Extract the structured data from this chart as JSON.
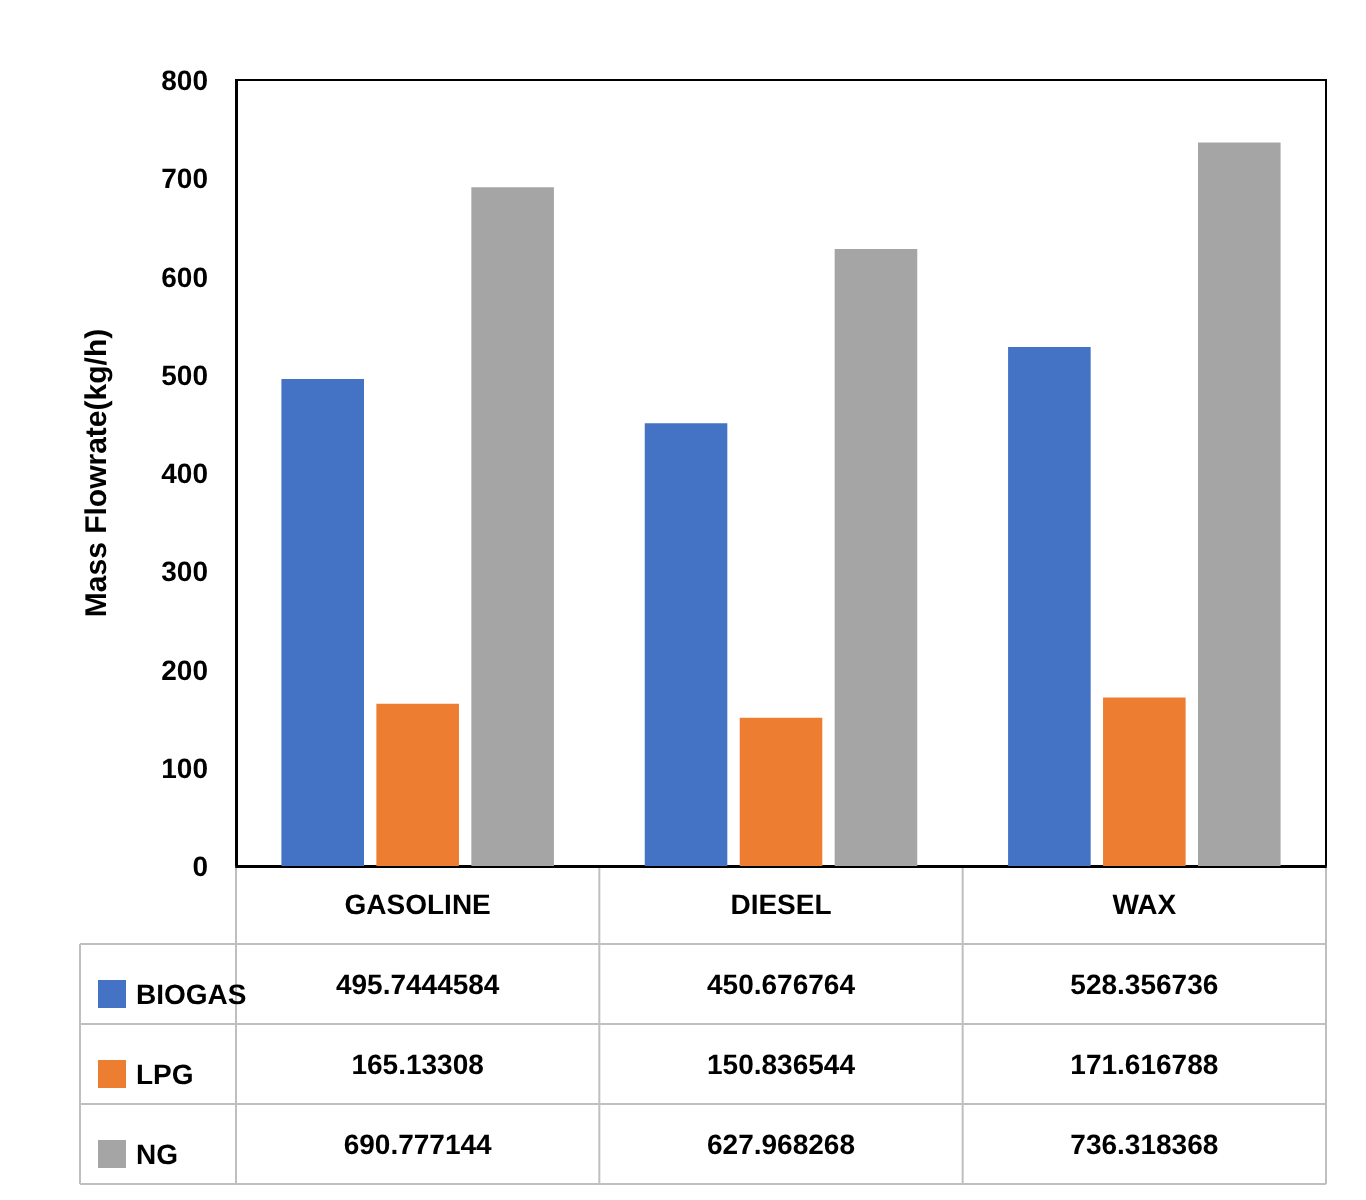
{
  "chart_data": {
    "type": "bar",
    "ylabel": "Mass Flowrate(kg/h)",
    "categories": [
      "GASOLINE",
      "DIESEL",
      "WAX"
    ],
    "series": [
      {
        "name": "BIOGAS",
        "color": "#4472c4",
        "values": [
          495.7444584,
          450.676764,
          528.356736
        ]
      },
      {
        "name": "LPG",
        "color": "#ed7d31",
        "values": [
          165.13308,
          150.836544,
          171.616788
        ]
      },
      {
        "name": "NG",
        "color": "#a5a5a5",
        "values": [
          690.777144,
          627.968268,
          736.318368
        ]
      }
    ],
    "ylim": [
      0,
      800
    ],
    "yticks": [
      0,
      100,
      200,
      300,
      400,
      500,
      600,
      700,
      800
    ],
    "grid": false,
    "legend": "bottom",
    "data_labels": true
  }
}
